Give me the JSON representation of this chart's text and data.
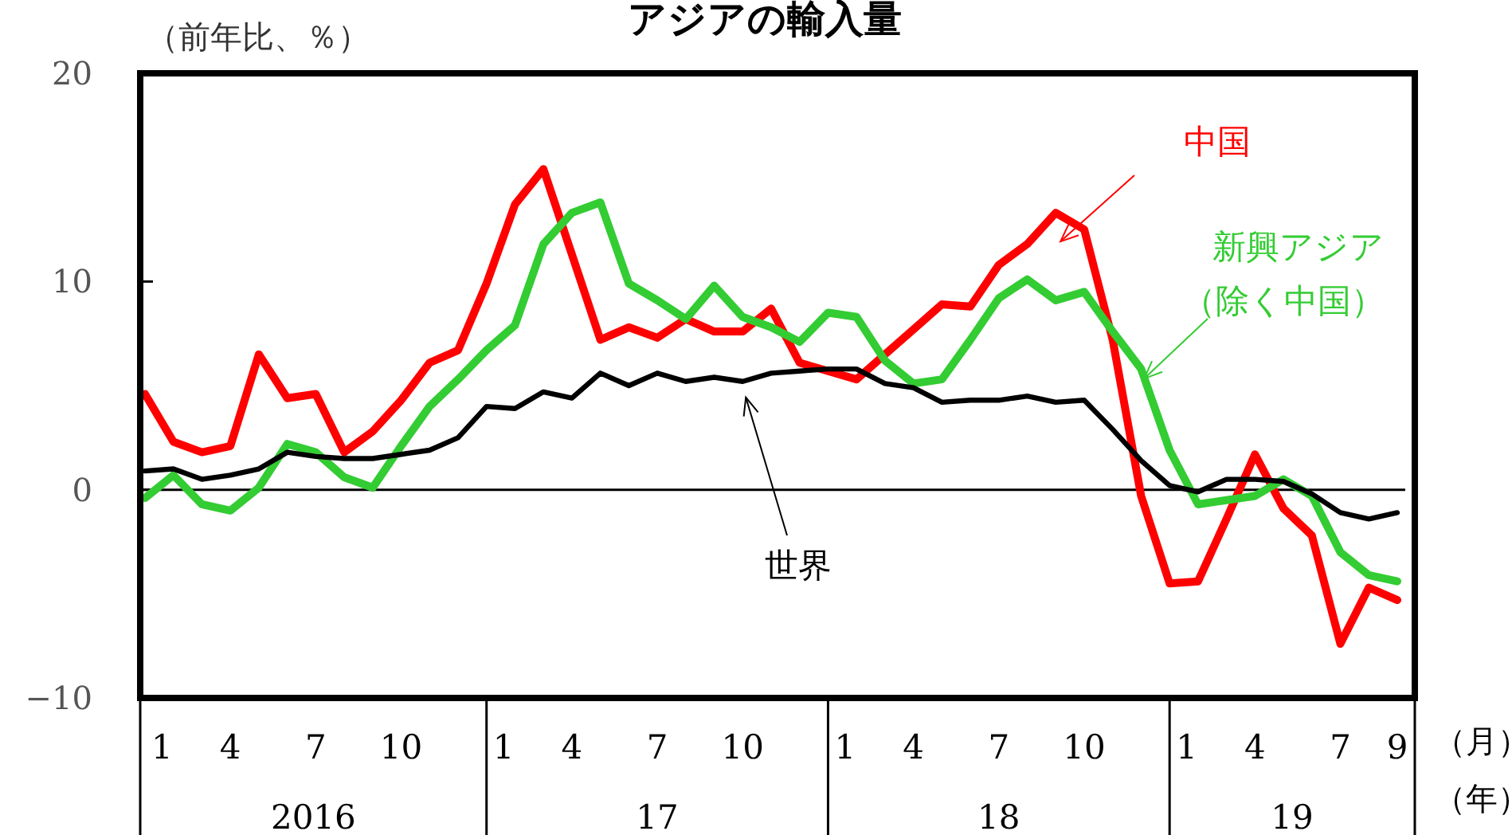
{
  "chart_data": {
    "type": "line",
    "title": "アジアの輸入量",
    "ylabel": "（前年比、％）",
    "x": [
      "2016-01",
      "2016-02",
      "2016-03",
      "2016-04",
      "2016-05",
      "2016-06",
      "2016-07",
      "2016-08",
      "2016-09",
      "2016-10",
      "2016-11",
      "2016-12",
      "2017-01",
      "2017-02",
      "2017-03",
      "2017-04",
      "2017-05",
      "2017-06",
      "2017-07",
      "2017-08",
      "2017-09",
      "2017-10",
      "2017-11",
      "2017-12",
      "2018-01",
      "2018-02",
      "2018-03",
      "2018-04",
      "2018-05",
      "2018-06",
      "2018-07",
      "2018-08",
      "2018-09",
      "2018-10",
      "2018-11",
      "2018-12",
      "2019-01",
      "2019-02",
      "2019-03",
      "2019-04",
      "2019-05",
      "2019-06",
      "2019-07",
      "2019-08",
      "2019-09"
    ],
    "xlim": [
      "2016-01",
      "2019-09"
    ],
    "xticks": [
      {
        "value": "2016-01",
        "label": "1"
      },
      {
        "value": "2016-04",
        "label": "4"
      },
      {
        "value": "2016-07",
        "label": "7"
      },
      {
        "value": "2016-10",
        "label": "10"
      },
      {
        "value": "2017-01",
        "label": "1"
      },
      {
        "value": "2017-04",
        "label": "4"
      },
      {
        "value": "2017-07",
        "label": "7"
      },
      {
        "value": "2017-10",
        "label": "10"
      },
      {
        "value": "2018-01",
        "label": "1"
      },
      {
        "value": "2018-04",
        "label": "4"
      },
      {
        "value": "2018-07",
        "label": "7"
      },
      {
        "value": "2018-10",
        "label": "10"
      },
      {
        "value": "2019-01",
        "label": "1"
      },
      {
        "value": "2019-04",
        "label": "4"
      },
      {
        "value": "2019-07",
        "label": "7"
      },
      {
        "value": "2019-09",
        "label": "9"
      }
    ],
    "ylim": [
      -10,
      20
    ],
    "yticks": [
      -10,
      0,
      10,
      20
    ],
    "grid": false,
    "legend": false,
    "ref_lines": [
      {
        "axis": "y",
        "value": 0,
        "color": "#000000"
      }
    ],
    "annotations": [
      "2016",
      "17",
      "18",
      "19",
      "（月）",
      "（年）"
    ],
    "series": [
      {
        "name": "中国",
        "color": "#ff0000",
        "values": [
          4.6,
          2.3,
          1.8,
          2.1,
          6.5,
          4.4,
          4.6,
          1.8,
          2.8,
          4.3,
          6.1,
          6.7,
          9.9,
          13.7,
          15.4,
          11.3,
          7.2,
          7.8,
          7.3,
          8.2,
          7.6,
          7.6,
          8.7,
          6.1,
          5.7,
          5.3,
          6.5,
          7.7,
          8.9,
          8.8,
          10.8,
          11.8,
          13.3,
          12.5,
          7.2,
          -0.3,
          -4.5,
          -4.4,
          -1.4,
          1.7,
          -0.9,
          -2.2,
          -7.4,
          -4.7,
          -5.3
        ]
      },
      {
        "name": "新興アジア（除く中国）",
        "color": "#33cc33",
        "values": [
          -0.4,
          0.7,
          -0.7,
          -1.0,
          0.1,
          2.2,
          1.8,
          0.6,
          0.1,
          2.1,
          4.0,
          5.3,
          6.7,
          7.9,
          11.8,
          13.3,
          13.8,
          9.9,
          9.1,
          8.2,
          9.8,
          8.3,
          7.8,
          7.1,
          8.5,
          8.3,
          6.2,
          5.1,
          5.3,
          7.2,
          9.2,
          10.1,
          9.1,
          9.5,
          7.6,
          5.8,
          1.9,
          -0.7,
          -0.5,
          -0.3,
          0.5,
          -0.3,
          -3.0,
          -4.1,
          -4.4
        ]
      },
      {
        "name": "世界",
        "color": "#000000",
        "values": [
          0.9,
          1.0,
          0.5,
          0.7,
          1.0,
          1.8,
          1.6,
          1.5,
          1.5,
          1.7,
          1.9,
          2.5,
          4.0,
          3.9,
          4.7,
          4.4,
          5.6,
          5.0,
          5.6,
          5.2,
          5.4,
          5.2,
          5.6,
          5.7,
          5.8,
          5.8,
          5.1,
          4.9,
          4.2,
          4.3,
          4.3,
          4.5,
          4.2,
          4.3,
          2.9,
          1.4,
          0.2,
          -0.1,
          0.5,
          0.5,
          0.4,
          -0.2,
          -1.1,
          -1.4,
          -1.1
        ]
      }
    ]
  }
}
